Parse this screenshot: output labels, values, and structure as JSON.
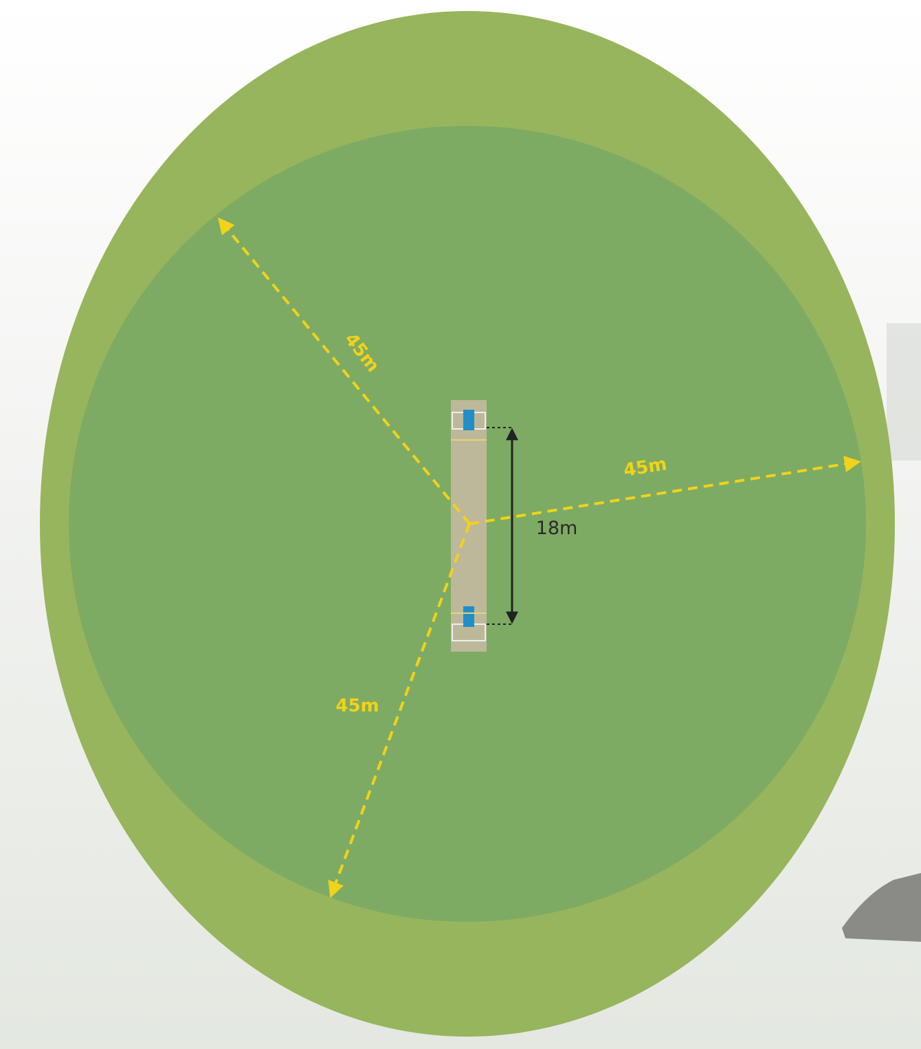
{
  "radius_labels": [
    "45m",
    "45m",
    "45m"
  ],
  "pitch_label": "18m"
}
